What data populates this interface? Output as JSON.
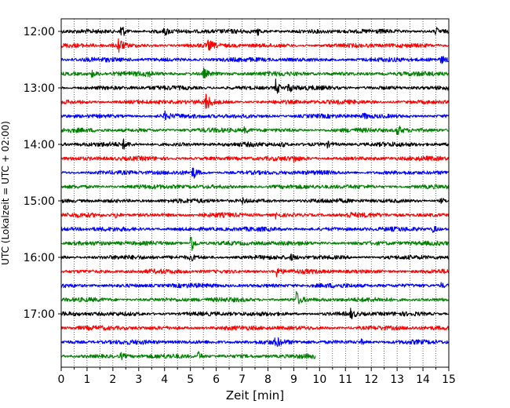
{
  "chart_data": {
    "type": "line",
    "xlabel": "Zeit  [min]",
    "ylabel": "UTC (Lokalzeit = UTC + 02:00)",
    "xlim": [
      0,
      15
    ],
    "x_ticks": [
      "0",
      "0.5",
      "1",
      "1.5",
      "2",
      "2.5",
      "3",
      "3.5",
      "4",
      "4.5",
      "5",
      "5.5",
      "6",
      "6.5",
      "7",
      "7.5",
      "8",
      "8.5",
      "9",
      "9.5",
      "10",
      "10.5",
      "11",
      "11.5",
      "12",
      "12.5",
      "13",
      "13.5",
      "14",
      "14.5",
      "15"
    ],
    "y_ticks": [
      "12:00",
      "13:00",
      "14:00",
      "15:00",
      "16:00",
      "17:00"
    ],
    "grid": "vertical dotted",
    "trace_colors": [
      "#000000",
      "#ff0000",
      "#0000ff",
      "#008000"
    ],
    "traces": [
      {
        "row": 0,
        "end": 15,
        "events": [
          {
            "t": 2.3,
            "a": 1.3
          },
          {
            "t": 4.0,
            "a": 0.45
          },
          {
            "t": 7.6,
            "a": 0.45
          },
          {
            "t": 14.5,
            "a": 0.45
          }
        ]
      },
      {
        "row": 1,
        "end": 15,
        "events": [
          {
            "t": 2.2,
            "a": 1.3
          },
          {
            "t": 5.7,
            "a": 0.7
          }
        ]
      },
      {
        "row": 2,
        "end": 15,
        "events": [
          {
            "t": 14.7,
            "a": 0.4
          }
        ]
      },
      {
        "row": 3,
        "end": 15,
        "events": [
          {
            "t": 1.2,
            "a": 0.45
          },
          {
            "t": 3.3,
            "a": 0.45
          },
          {
            "t": 5.5,
            "a": 0.7
          }
        ]
      },
      {
        "row": 4,
        "end": 15,
        "events": [
          {
            "t": 8.3,
            "a": 1.0
          },
          {
            "t": 8.8,
            "a": 0.5
          }
        ]
      },
      {
        "row": 5,
        "end": 15,
        "events": [
          {
            "t": 5.6,
            "a": 1.3
          }
        ]
      },
      {
        "row": 6,
        "end": 15,
        "events": [
          {
            "t": 4.0,
            "a": 0.5
          },
          {
            "t": 11.7,
            "a": 0.35
          }
        ]
      },
      {
        "row": 7,
        "end": 15,
        "events": [
          {
            "t": 7.1,
            "a": 0.4
          },
          {
            "t": 13.0,
            "a": 0.8
          }
        ]
      },
      {
        "row": 8,
        "end": 15,
        "events": [
          {
            "t": 2.4,
            "a": 0.55
          },
          {
            "t": 8.5,
            "a": 0.35
          },
          {
            "t": 10.3,
            "a": 0.3
          }
        ]
      },
      {
        "row": 9,
        "end": 15,
        "events": [
          {
            "t": 9.0,
            "a": 0.3
          }
        ]
      },
      {
        "row": 10,
        "end": 15,
        "events": [
          {
            "t": 5.1,
            "a": 0.8
          }
        ]
      },
      {
        "row": 11,
        "end": 15,
        "events": []
      },
      {
        "row": 12,
        "end": 15,
        "events": [
          {
            "t": 7.0,
            "a": 0.3
          },
          {
            "t": 14.7,
            "a": 0.3
          }
        ]
      },
      {
        "row": 13,
        "end": 15,
        "events": [
          {
            "t": 2.1,
            "a": 0.4
          },
          {
            "t": 8.3,
            "a": 0.35
          },
          {
            "t": 11.1,
            "a": 0.3
          }
        ]
      },
      {
        "row": 14,
        "end": 15,
        "events": [
          {
            "t": 14.4,
            "a": 0.5
          }
        ]
      },
      {
        "row": 15,
        "end": 15,
        "events": [
          {
            "t": 5.0,
            "a": 1.6
          }
        ]
      },
      {
        "row": 16,
        "end": 15,
        "events": [
          {
            "t": 5.0,
            "a": 0.4
          },
          {
            "t": 8.9,
            "a": 0.35
          }
        ]
      },
      {
        "row": 17,
        "end": 15,
        "events": [
          {
            "t": 8.3,
            "a": 0.7
          }
        ]
      },
      {
        "row": 18,
        "end": 15,
        "events": [
          {
            "t": 14.7,
            "a": 0.3
          }
        ]
      },
      {
        "row": 19,
        "end": 15,
        "events": [
          {
            "t": 9.1,
            "a": 1.0
          }
        ]
      },
      {
        "row": 20,
        "end": 15,
        "events": [
          {
            "t": 11.2,
            "a": 0.6
          }
        ]
      },
      {
        "row": 21,
        "end": 15,
        "events": []
      },
      {
        "row": 22,
        "end": 15,
        "events": [
          {
            "t": 8.3,
            "a": 0.7
          },
          {
            "t": 11.6,
            "a": 0.3
          }
        ]
      },
      {
        "row": 23,
        "end": 9.85,
        "events": [
          {
            "t": 2.3,
            "a": 0.4
          },
          {
            "t": 5.3,
            "a": 0.55
          }
        ]
      }
    ]
  }
}
